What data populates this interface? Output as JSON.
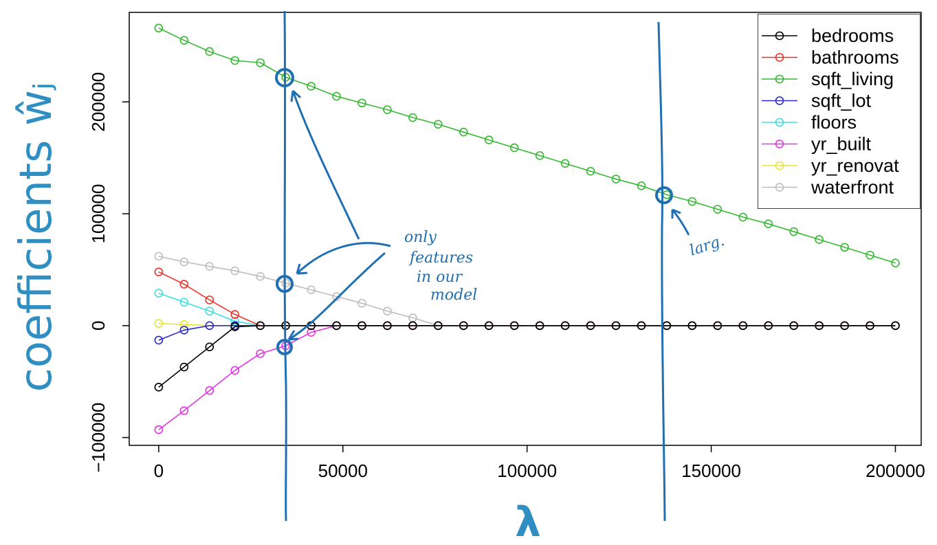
{
  "chart_data": {
    "type": "line",
    "xlabel": "λ",
    "ylabel": "coefficients ŵⱼ",
    "xlim": [
      -8000,
      207000
    ],
    "ylim": [
      -107000,
      280000
    ],
    "xticks": [
      0,
      50000,
      100000,
      150000,
      200000
    ],
    "yticks": [
      -100000,
      0,
      100000,
      200000
    ],
    "grid": false,
    "legend_position": "top-right",
    "x": [
      0,
      6897,
      13793,
      20690,
      27586,
      34483,
      41379,
      48276,
      55172,
      62069,
      68966,
      75862,
      82759,
      89655,
      96552,
      103448,
      110345,
      117241,
      124138,
      131034,
      137931,
      144828,
      151724,
      158621,
      165517,
      172414,
      179310,
      186207,
      193103,
      200000
    ],
    "series": [
      {
        "name": "bedrooms",
        "color": "#000000",
        "values": [
          -55000,
          -37000,
          -19000,
          -1000,
          0,
          0,
          0,
          0,
          0,
          0,
          0,
          0,
          0,
          0,
          0,
          0,
          0,
          0,
          0,
          0,
          0,
          0,
          0,
          0,
          0,
          0,
          0,
          0,
          0,
          0
        ]
      },
      {
        "name": "bathrooms",
        "color": "#e8332a",
        "values": [
          48000,
          37000,
          23000,
          10000,
          0,
          0,
          0,
          0,
          0,
          0,
          0,
          0,
          0,
          0,
          0,
          0,
          0,
          0,
          0,
          0,
          0,
          0,
          0,
          0,
          0,
          0,
          0,
          0,
          0,
          0
        ]
      },
      {
        "name": "sqft_living",
        "color": "#36b832",
        "values": [
          266000,
          255000,
          245000,
          237000,
          235000,
          222000,
          214000,
          205000,
          199000,
          193000,
          186000,
          180000,
          173000,
          166000,
          159000,
          152000,
          145000,
          138000,
          131000,
          125000,
          117000,
          111000,
          104000,
          97000,
          91000,
          84000,
          77000,
          70000,
          63000,
          56000
        ]
      },
      {
        "name": "sqft_lot",
        "color": "#2c2ccc",
        "values": [
          -13000,
          -4000,
          0,
          0,
          0,
          0,
          0,
          0,
          0,
          0,
          0,
          0,
          0,
          0,
          0,
          0,
          0,
          0,
          0,
          0,
          0,
          0,
          0,
          0,
          0,
          0,
          0,
          0,
          0,
          0
        ]
      },
      {
        "name": "floors",
        "color": "#3fe0e0",
        "values": [
          29000,
          21000,
          13000,
          4000,
          0,
          0,
          0,
          0,
          0,
          0,
          0,
          0,
          0,
          0,
          0,
          0,
          0,
          0,
          0,
          0,
          0,
          0,
          0,
          0,
          0,
          0,
          0,
          0,
          0,
          0
        ]
      },
      {
        "name": "yr_built",
        "color": "#e632e6",
        "values": [
          -93000,
          -76000,
          -58000,
          -40000,
          -25000,
          -18000,
          -6000,
          0,
          0,
          0,
          0,
          0,
          0,
          0,
          0,
          0,
          0,
          0,
          0,
          0,
          0,
          0,
          0,
          0,
          0,
          0,
          0,
          0,
          0,
          0
        ]
      },
      {
        "name": "yr_renovated",
        "color": "#e6e632",
        "values": [
          2000,
          1000,
          0,
          0,
          0,
          0,
          0,
          0,
          0,
          0,
          0,
          0,
          0,
          0,
          0,
          0,
          0,
          0,
          0,
          0,
          0,
          0,
          0,
          0,
          0,
          0,
          0,
          0,
          0,
          0
        ]
      },
      {
        "name": "waterfront",
        "color": "#bdbdbd",
        "values": [
          62000,
          57000,
          53000,
          49000,
          44000,
          38000,
          32000,
          26000,
          20000,
          13000,
          7000,
          0,
          0,
          0,
          0,
          0,
          0,
          0,
          0,
          0,
          0,
          0,
          0,
          0,
          0,
          0,
          0,
          0,
          0,
          0
        ]
      }
    ]
  },
  "legend": {
    "labels": [
      "bedrooms",
      "bathrooms",
      "sqft_living",
      "sqft_lot",
      "floors",
      "yr_built",
      "yr_renovat",
      "waterfront"
    ]
  },
  "annotations": {
    "note_only": "only",
    "note_features": "features",
    "note_in_our": "in our",
    "note_model": "model",
    "note_large": "larg.",
    "ink_color": "#1f6fb2",
    "marked_lambdas": [
      34483,
      137931
    ]
  }
}
